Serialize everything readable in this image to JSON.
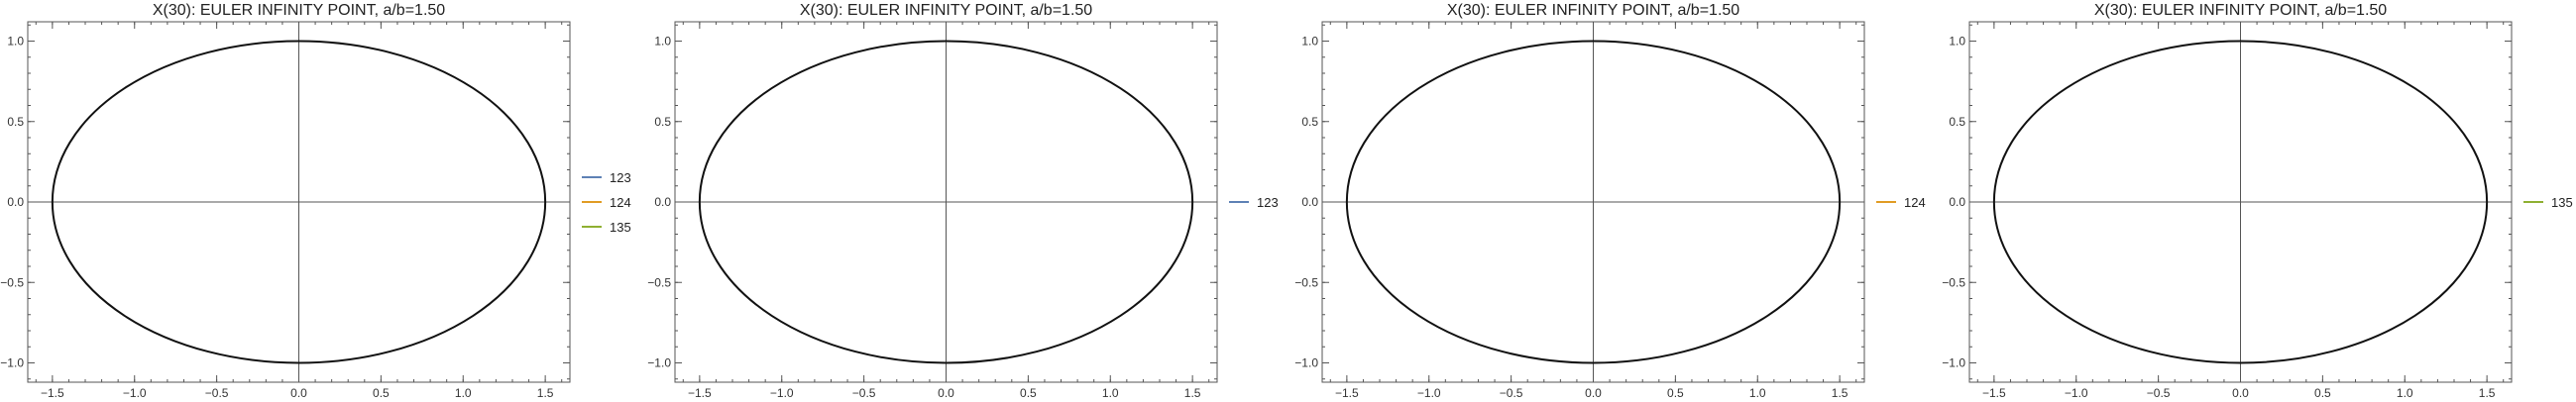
{
  "chart_data": [
    {
      "type": "line",
      "title": "X(30): EULER INFINITY POINT, a/b=1.50",
      "xlim": [
        -1.65,
        1.65
      ],
      "ylim": [
        -1.12,
        1.12
      ],
      "x_ticks": [
        -1.5,
        -1.0,
        -0.5,
        0.0,
        0.5,
        1.0,
        1.5
      ],
      "x_tick_labels": [
        "−1.5",
        "−1.0",
        "−0.5",
        "0.0",
        "0.5",
        "1.0",
        "1.5"
      ],
      "y_ticks": [
        -1.0,
        -0.5,
        0.0,
        0.5,
        1.0
      ],
      "y_tick_labels": [
        "−1.0",
        "−0.5",
        "0.0",
        "0.5",
        "1.0"
      ],
      "ellipse": {
        "a": 1.5,
        "b": 1.0,
        "color": "#111111"
      },
      "legend_position": "right",
      "legend": [
        {
          "label": "123",
          "color": "#5e81b5"
        },
        {
          "label": "124",
          "color": "#e19c24"
        },
        {
          "label": "135",
          "color": "#8fb032"
        }
      ]
    },
    {
      "type": "line",
      "title": "X(30): EULER INFINITY POINT, a/b=1.50",
      "xlim": [
        -1.65,
        1.65
      ],
      "ylim": [
        -1.12,
        1.12
      ],
      "x_ticks": [
        -1.5,
        -1.0,
        -0.5,
        0.0,
        0.5,
        1.0,
        1.5
      ],
      "x_tick_labels": [
        "−1.5",
        "−1.0",
        "−0.5",
        "0.0",
        "0.5",
        "1.0",
        "1.5"
      ],
      "y_ticks": [
        -1.0,
        -0.5,
        0.0,
        0.5,
        1.0
      ],
      "y_tick_labels": [
        "−1.0",
        "−0.5",
        "0.0",
        "0.5",
        "1.0"
      ],
      "ellipse": {
        "a": 1.5,
        "b": 1.0,
        "color": "#111111"
      },
      "legend_position": "right",
      "legend": [
        {
          "label": "123",
          "color": "#5e81b5"
        }
      ]
    },
    {
      "type": "line",
      "title": "X(30): EULER INFINITY POINT, a/b=1.50",
      "xlim": [
        -1.65,
        1.65
      ],
      "ylim": [
        -1.12,
        1.12
      ],
      "x_ticks": [
        -1.5,
        -1.0,
        -0.5,
        0.0,
        0.5,
        1.0,
        1.5
      ],
      "x_tick_labels": [
        "−1.5",
        "−1.0",
        "−0.5",
        "0.0",
        "0.5",
        "1.0",
        "1.5"
      ],
      "y_ticks": [
        -1.0,
        -0.5,
        0.0,
        0.5,
        1.0
      ],
      "y_tick_labels": [
        "−1.0",
        "−0.5",
        "0.0",
        "0.5",
        "1.0"
      ],
      "ellipse": {
        "a": 1.5,
        "b": 1.0,
        "color": "#111111"
      },
      "legend_position": "right",
      "legend": [
        {
          "label": "124",
          "color": "#e19c24"
        }
      ]
    },
    {
      "type": "line",
      "title": "X(30): EULER INFINITY POINT, a/b=1.50",
      "xlim": [
        -1.65,
        1.65
      ],
      "ylim": [
        -1.12,
        1.12
      ],
      "x_ticks": [
        -1.5,
        -1.0,
        -0.5,
        0.0,
        0.5,
        1.0,
        1.5
      ],
      "x_tick_labels": [
        "−1.5",
        "−1.0",
        "−0.5",
        "0.0",
        "0.5",
        "1.0",
        "1.5"
      ],
      "y_ticks": [
        -1.0,
        -0.5,
        0.0,
        0.5,
        1.0
      ],
      "y_tick_labels": [
        "−1.0",
        "−0.5",
        "0.0",
        "0.5",
        "1.0"
      ],
      "ellipse": {
        "a": 1.5,
        "b": 1.0,
        "color": "#111111"
      },
      "legend_position": "right",
      "legend": [
        {
          "label": "135",
          "color": "#8fb032"
        }
      ]
    }
  ]
}
